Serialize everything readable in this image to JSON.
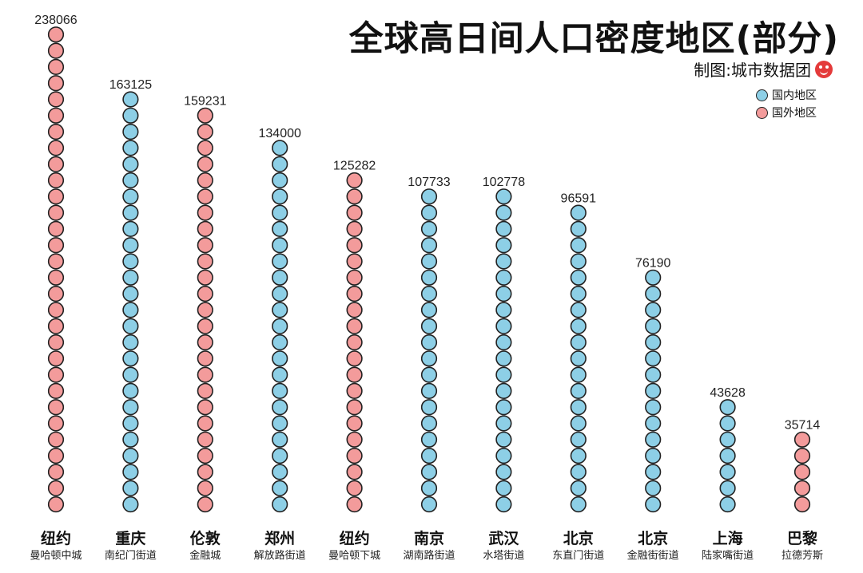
{
  "header": {
    "title": "全球高日间人口密度地区(部分)",
    "credit": "制图:城市数据团"
  },
  "legend": {
    "items": [
      {
        "label": "国内地区",
        "color": "#8dcfe6"
      },
      {
        "label": "国外地区",
        "color": "#f39b9b"
      }
    ]
  },
  "colors": {
    "domestic": "#8dcfe6",
    "foreign": "#f39b9b",
    "outline": "#222222"
  },
  "chart_data": {
    "type": "bar",
    "title": "全球高日间人口密度地区(部分)",
    "xlabel": "",
    "ylabel": "",
    "ylim": [
      0,
      238066
    ],
    "legend_position": "top-right",
    "grid": false,
    "categories": [
      "纽约",
      "重庆",
      "伦敦",
      "郑州",
      "纽约",
      "南京",
      "武汉",
      "北京",
      "北京",
      "上海",
      "巴黎"
    ],
    "subcategories": [
      "曼哈顿中城",
      "南纪门街道",
      "金融城",
      "解放路街道",
      "曼哈顿下城",
      "湖南路街道",
      "水塔街道",
      "东直门街道",
      "金融街街道",
      "陆家嘴街道",
      "拉德芳斯"
    ],
    "values": [
      238066,
      163125,
      159231,
      134000,
      125282,
      107733,
      102778,
      96591,
      76190,
      43628,
      35714
    ],
    "value_labels": [
      "238066",
      "163125",
      "159231",
      "134000",
      "125282",
      "107733",
      "102778",
      "96591",
      "76190",
      "43628",
      "35714"
    ],
    "dots": [
      30,
      26,
      25,
      23,
      21,
      20,
      20,
      19,
      15,
      7,
      5
    ],
    "region": [
      "foreign",
      "domestic",
      "foreign",
      "domestic",
      "foreign",
      "domestic",
      "domestic",
      "domestic",
      "domestic",
      "domestic",
      "foreign"
    ]
  }
}
